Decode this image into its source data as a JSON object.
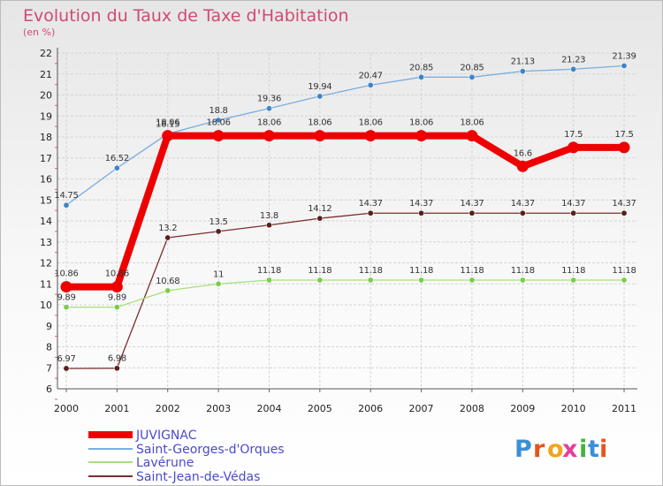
{
  "chart_data": {
    "type": "line",
    "title": "Evolution du Taux de Taxe d'Habitation",
    "subtitle": "(en %)",
    "x": [
      "2000",
      "2001",
      "2002",
      "2003",
      "2004",
      "2005",
      "2006",
      "2007",
      "2008",
      "2009",
      "2010",
      "2011"
    ],
    "ylim": [
      6,
      22
    ],
    "yticks": [
      6,
      7,
      8,
      9,
      10,
      11,
      12,
      13,
      14,
      15,
      16,
      17,
      18,
      19,
      20,
      21,
      22
    ],
    "grid": true,
    "legend_position": "bottom-left",
    "series": [
      {
        "name": "Saint-Georges-d'Orques",
        "color": "#79aee0",
        "marker_color": "#3f84c8",
        "values": [
          14.75,
          16.52,
          18.15,
          18.8,
          19.36,
          19.94,
          20.47,
          20.85,
          20.85,
          21.13,
          21.23,
          21.39
        ],
        "labels": [
          "14.75",
          "16.52",
          "18.15",
          "18.8",
          "19.36",
          "19.94",
          "20.47",
          "20.85",
          "20.85",
          "21.13",
          "21.23",
          "21.39"
        ]
      },
      {
        "name": "Saint-Jean-de-Védas",
        "color": "#7b2d2d",
        "marker_color": "#5a1e1e",
        "values": [
          6.97,
          6.98,
          13.2,
          13.5,
          13.8,
          14.12,
          14.37,
          14.37,
          14.37,
          14.37,
          14.37,
          14.37
        ],
        "labels": [
          "6.97",
          "6.98",
          "13.2",
          "13.5",
          "13.8",
          "14.12",
          "14.37",
          "14.37",
          "14.37",
          "14.37",
          "14.37",
          "14.37"
        ]
      },
      {
        "name": "Lavérune",
        "color": "#a6e07a",
        "marker_color": "#7ccc4a",
        "values": [
          9.89,
          9.89,
          10.68,
          11,
          11.18,
          11.18,
          11.18,
          11.18,
          11.18,
          11.18,
          11.18,
          11.18
        ],
        "labels": [
          "9.89",
          "9.89",
          "10.68",
          "11",
          "11.18",
          "11.18",
          "11.18",
          "11.18",
          "11.18",
          "11.18",
          "11.18",
          "11.18"
        ]
      },
      {
        "name": "JUVIGNAC",
        "color": "#ee0000",
        "marker_color": "#ee0000",
        "values": [
          10.86,
          10.86,
          18.06,
          18.06,
          18.06,
          18.06,
          18.06,
          18.06,
          18.06,
          16.6,
          17.5,
          17.5
        ],
        "labels": [
          "10.86",
          "10.86",
          "18.06",
          "18.06",
          "18.06",
          "18.06",
          "18.06",
          "18.06",
          "18.06",
          "16.6",
          "17.5",
          "17.5"
        ]
      }
    ],
    "legend": [
      "JUVIGNAC",
      "Saint-Georges-d'Orques",
      "Lavérune",
      "Saint-Jean-de-Védas"
    ]
  },
  "logo": {
    "text": "Proxiti",
    "letters": [
      "P",
      "r",
      "o",
      "x",
      "i",
      "t",
      "i"
    ],
    "colors": [
      "#3b8fd8",
      "#e8541c",
      "#f0a51c",
      "#e83c9c",
      "#44b33e",
      "#3b8fd8",
      "#e8541c"
    ]
  }
}
